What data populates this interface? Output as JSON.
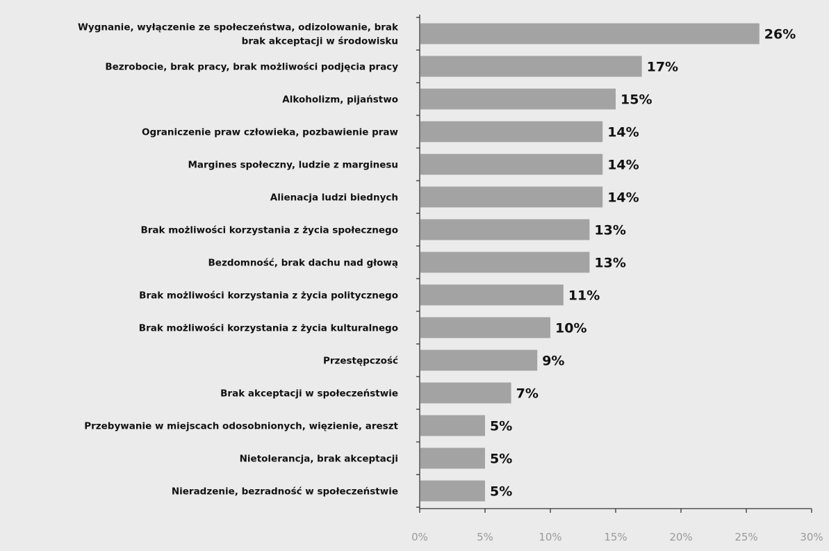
{
  "chart_data": {
    "type": "bar",
    "orientation": "horizontal",
    "categories": [
      [
        "Wygnanie, wyłączenie ze społeczeństwa, odizolowanie, brak",
        "brak akceptacji w środowisku"
      ],
      [
        "Bezrobocie, brak pracy,  brak możliwości podjęcia pracy"
      ],
      [
        "Alkoholizm, pijaństwo"
      ],
      [
        "Ograniczenie praw człowieka, pozbawienie praw"
      ],
      [
        "Margines społeczny, ludzie z marginesu"
      ],
      [
        "Alienacja ludzi biednych"
      ],
      [
        "Brak możliwości korzystania z życia społecznego"
      ],
      [
        "Bezdomność, brak dachu nad głową"
      ],
      [
        "Brak możliwości korzystania z życia politycznego"
      ],
      [
        "Brak możliwości korzystania z życia kulturalnego"
      ],
      [
        "Przestępczość"
      ],
      [
        "Brak akceptacji w społeczeństwie"
      ],
      [
        "Przebywanie w miejscach odosobnionych, więzienie, areszt"
      ],
      [
        "Nietolerancja, brak akceptacji"
      ],
      [
        "Nieradzenie, bezradność w społeczeństwie"
      ]
    ],
    "values": [
      26,
      17,
      15,
      14,
      14,
      14,
      13,
      13,
      11,
      10,
      9,
      7,
      5,
      5,
      5
    ],
    "value_labels": [
      "26%",
      "17%",
      "15%",
      "14%",
      "14%",
      "14%",
      "13%",
      "13%",
      "11%",
      "10%",
      "9%",
      "7%",
      "5%",
      "5%",
      "5%"
    ],
    "xticks": [
      0,
      5,
      10,
      15,
      20,
      25,
      30
    ],
    "xtick_labels": [
      "0%",
      "5%",
      "10%",
      "15%",
      "20%",
      "25%",
      "30%"
    ],
    "xlim": [
      0,
      30
    ],
    "grid": false,
    "legend": "none",
    "title": "",
    "xlabel": "",
    "ylabel": "",
    "colors": {
      "bar": "#a3a3a3",
      "axis": "#333333",
      "text": "#111111",
      "tick_text": "#9a9a9a",
      "background": "#ebebeb"
    }
  }
}
